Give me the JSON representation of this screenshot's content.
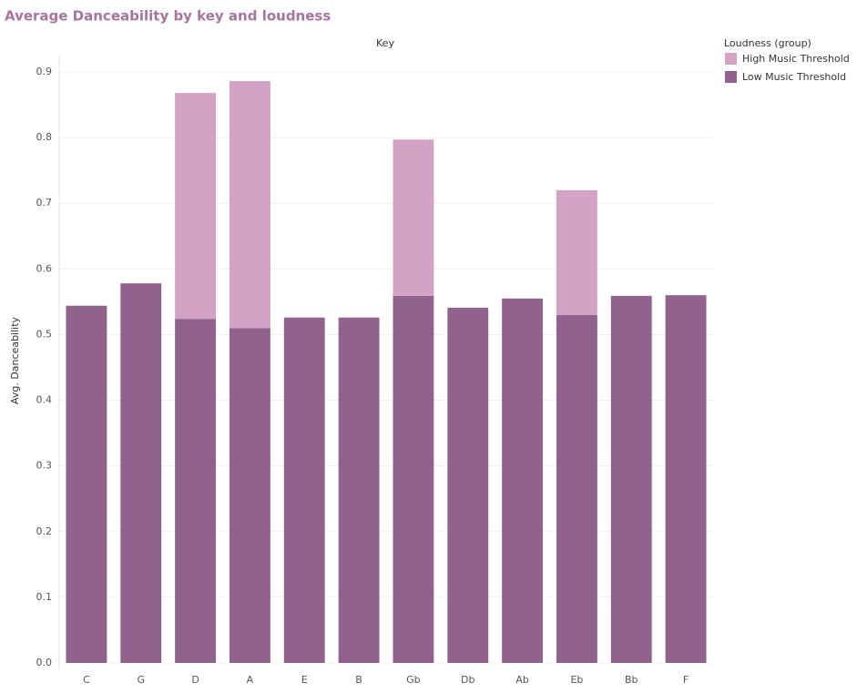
{
  "chart_data": {
    "type": "stacked_bar",
    "title": "Average Danceability by key and loudness",
    "x_label": "Key",
    "y_label": "Avg. Danceability",
    "legend_title": "Loudness (group)",
    "categories": [
      "C",
      "G",
      "D",
      "A",
      "E",
      "B",
      "Gb",
      "Db",
      "Ab",
      "Eb",
      "Bb",
      "F"
    ],
    "series": [
      {
        "name": "High Music Threshold",
        "color": "#d4a2c4",
        "values": [
          null,
          null,
          0.344,
          0.376,
          null,
          null,
          0.238,
          null,
          null,
          0.19,
          null,
          null
        ]
      },
      {
        "name": "Low Music Threshold",
        "color": "#91628e",
        "values": [
          0.544,
          0.578,
          0.524,
          0.51,
          0.526,
          0.526,
          0.559,
          0.541,
          0.555,
          0.53,
          0.559,
          0.56
        ]
      }
    ],
    "ylim": [
      0,
      0.9
    ],
    "yticks": [
      {
        "value": 0,
        "label": "0.0"
      },
      0.1,
      0.2,
      0.3,
      0.4,
      0.5,
      0.6,
      0.7,
      0.8,
      0.9
    ],
    "grid": true
  }
}
